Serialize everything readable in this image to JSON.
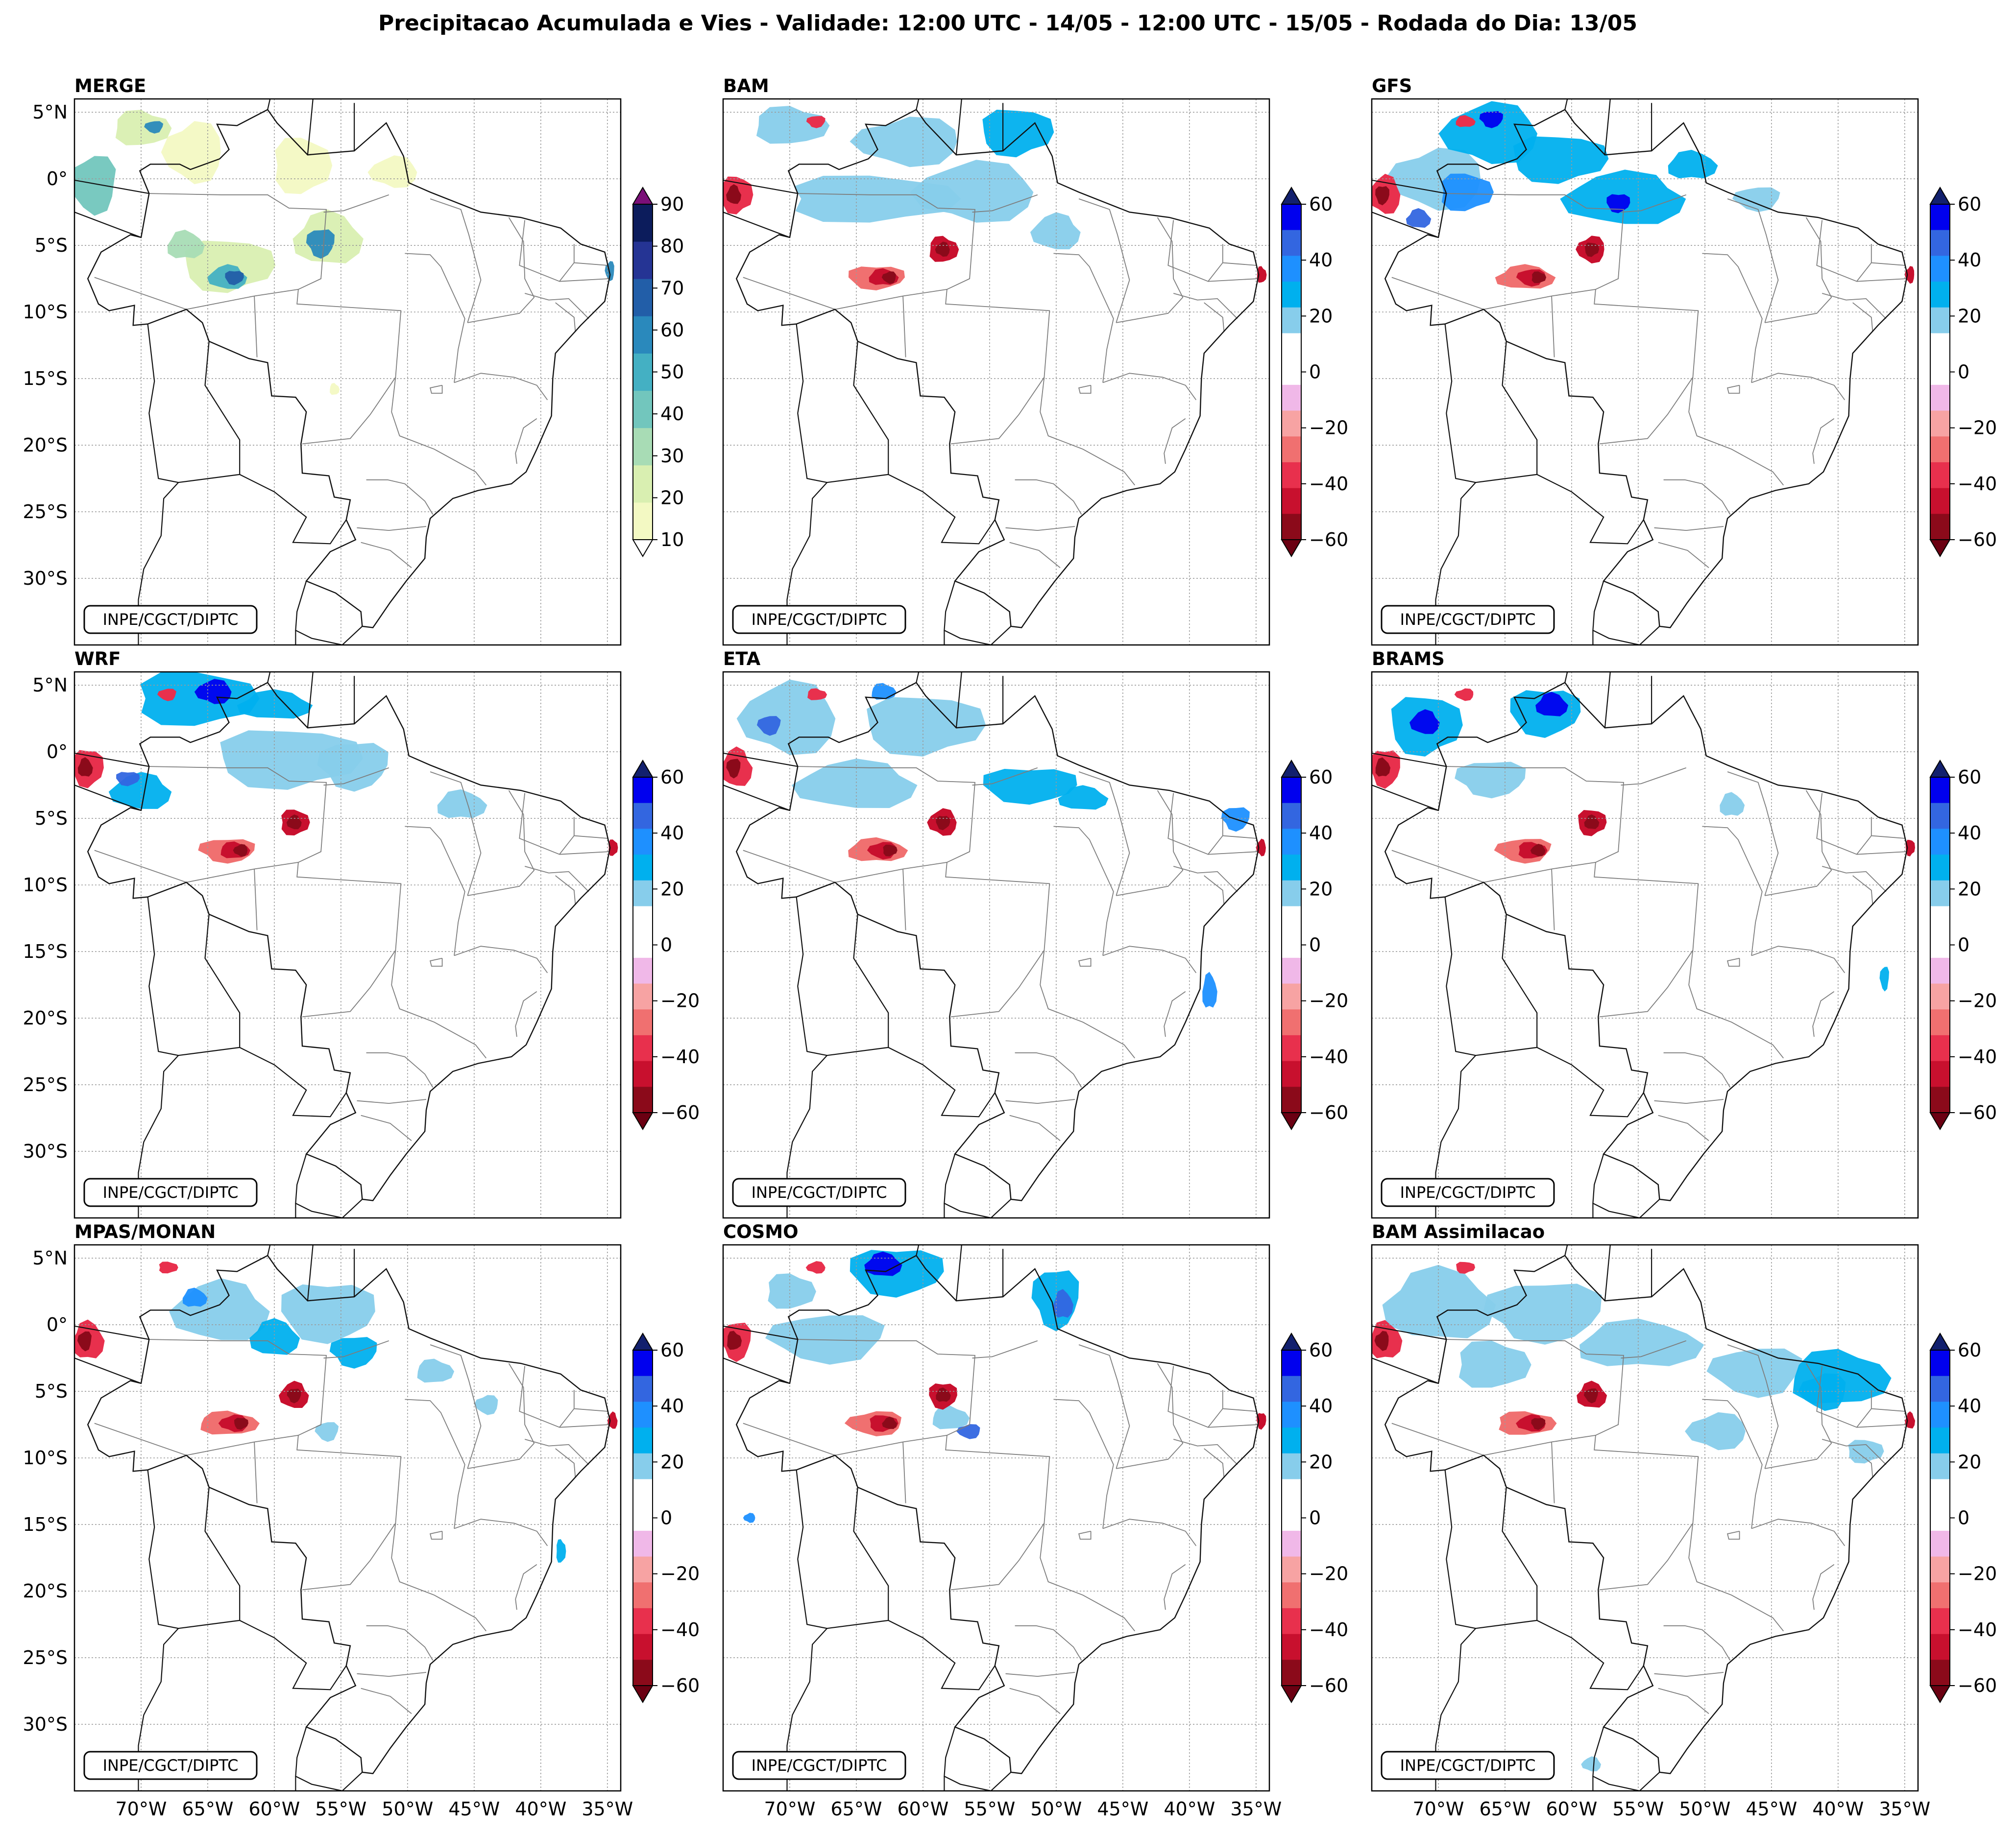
{
  "figure": {
    "title": "Precipitacao Acumulada e Vies - Validade: 12:00 UTC - 14/05 - 12:00 UTC - 15/05 - Rodada do Dia: 13/05",
    "credit": "INPE/CGCT/DIPTC"
  },
  "axes": {
    "lat_labels": [
      "5°N",
      "0°",
      "5°S",
      "10°S",
      "15°S",
      "20°S",
      "25°S",
      "30°S"
    ],
    "lon_labels": [
      "70°W",
      "65°W",
      "60°W",
      "55°W",
      "50°W",
      "45°W",
      "40°W",
      "35°W"
    ],
    "lat_range": [
      6,
      -35
    ],
    "lon_range": [
      -75,
      -34
    ]
  },
  "panels": [
    {
      "id": "merge",
      "title": "MERGE",
      "type": "accumulated"
    },
    {
      "id": "bam",
      "title": "BAM",
      "type": "bias"
    },
    {
      "id": "gfs",
      "title": "GFS",
      "type": "bias"
    },
    {
      "id": "wrf",
      "title": "WRF",
      "type": "bias"
    },
    {
      "id": "eta",
      "title": "ETA",
      "type": "bias"
    },
    {
      "id": "brams",
      "title": "BRAMS",
      "type": "bias"
    },
    {
      "id": "mpas",
      "title": "MPAS/MONAN",
      "type": "bias"
    },
    {
      "id": "cosmo",
      "title": "COSMO",
      "type": "bias"
    },
    {
      "id": "bam_assim",
      "title": "BAM Assimilacao",
      "type": "bias"
    }
  ],
  "colorbars": {
    "accumulated": {
      "tick_labels": [
        "10",
        "20",
        "30",
        "40",
        "50",
        "60",
        "70",
        "80",
        "90"
      ],
      "colors": [
        "#f3f9c3",
        "#d9efb1",
        "#a8dcb5",
        "#72c6bd",
        "#44b0c3",
        "#2a89bc",
        "#225ea8",
        "#253494",
        "#0c1c5c"
      ],
      "extend_low": "#ffffff",
      "extend_high": "#7a0f78"
    },
    "bias": {
      "tick_labels": [
        "60",
        "40",
        "20",
        "0",
        "−20",
        "−40",
        "−60"
      ],
      "colors": [
        "#0000ee",
        "#3366e0",
        "#1e90ff",
        "#00b0ee",
        "#87cdeb",
        "#ffffff",
        "#ffffff",
        "#f0b8e8",
        "#f7a3a3",
        "#f07070",
        "#e8304d",
        "#c8102e",
        "#8b0a1a"
      ],
      "extend_high": "#12206e",
      "extend_low": "#6b0012"
    }
  },
  "chart_data": {
    "type": "map_panels",
    "title": "Precipitacao Acumulada e Vies - Validade: 12:00 UTC - 14/05 - 12:00 UTC - 15/05 - Rodada do Dia: 13/05",
    "region": "Brazil",
    "extent": {
      "lon": [
        -75,
        -34
      ],
      "lat": [
        -35,
        6
      ]
    },
    "panels": [
      "MERGE",
      "BAM",
      "GFS",
      "WRF",
      "ETA",
      "BRAMS",
      "MPAS/MONAN",
      "COSMO",
      "BAM Assimilacao"
    ],
    "merge_levels": [
      10,
      20,
      30,
      40,
      50,
      60,
      70,
      80,
      90
    ],
    "bias_levels": [
      -60,
      -40,
      -20,
      0,
      20,
      40,
      60
    ]
  }
}
